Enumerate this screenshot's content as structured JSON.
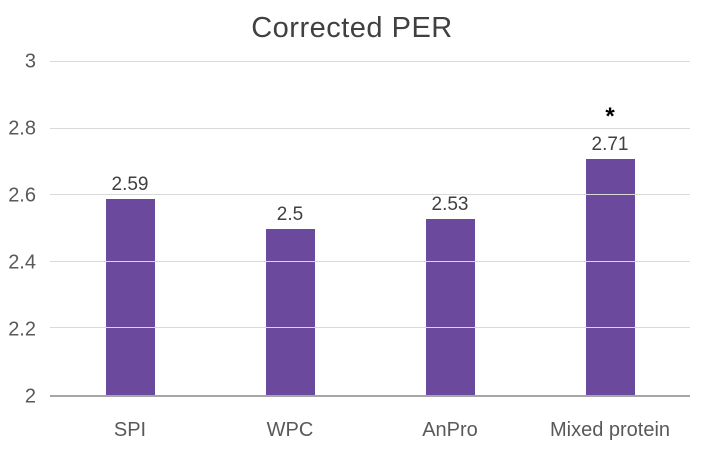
{
  "chart_data": {
    "type": "bar",
    "title": "Corrected PER",
    "categories": [
      "SPI",
      "WPC",
      "AnPro",
      "Mixed protein"
    ],
    "values": [
      2.59,
      2.5,
      2.53,
      2.71
    ],
    "value_labels": [
      "2.59",
      "2.5",
      "2.53",
      "2.71"
    ],
    "annotations": [
      {
        "category": "Mixed protein",
        "text": "*"
      }
    ],
    "ylim": [
      2,
      3
    ],
    "yticks": [
      2,
      2.2,
      2.4,
      2.6,
      2.8,
      3
    ],
    "ytick_labels": [
      "2",
      "2.2",
      "2.4",
      "2.6",
      "2.8",
      "3"
    ],
    "grid": true,
    "legend": "none",
    "bar_color": "#6b4a9e",
    "title_color": "#404040",
    "axis_text_color": "#595959",
    "gridline_color": "#d9d9d9",
    "baseline_color": "#a6a6a6"
  }
}
